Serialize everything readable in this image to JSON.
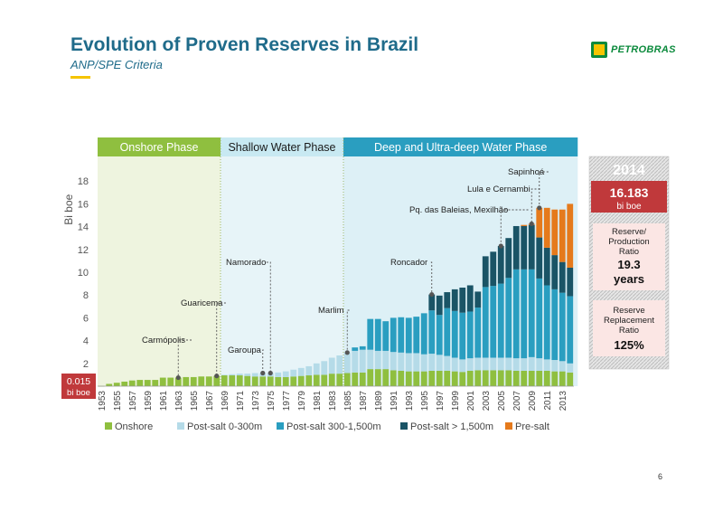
{
  "header": {
    "title": "Evolution of Proven Reserves in Brazil",
    "subtitle": "ANP/SPE Criteria",
    "logo_text": "PETROBRAS",
    "page_number": "6"
  },
  "phases": [
    {
      "label": "Onshore Phase",
      "start": "1953",
      "end": "1967",
      "color": "#8fbf3f"
    },
    {
      "label": "Shallow Water Phase",
      "start": "1969",
      "end": "1983",
      "color": "#c8e9f2"
    },
    {
      "label": "Deep and Ultra-deep Water Phase",
      "start": "1985",
      "end": "2013",
      "color": "#2a9ec0"
    }
  ],
  "side_panel": {
    "year": "2014",
    "total_value": "16.183",
    "total_unit": "bi boe",
    "rp_label_lines": [
      "Reserve/",
      "Production",
      "Ratio"
    ],
    "rp_value": "19.3",
    "rp_unit": "years",
    "rr_label_lines": [
      "Reserve",
      "Replacement",
      "Ratio"
    ],
    "rr_value": "125%"
  },
  "start_box": {
    "value": "0.015",
    "unit": "bi boe"
  },
  "annotations": [
    {
      "label": "Carmópolis",
      "year": "1963"
    },
    {
      "label": "Guaricema",
      "year": "1968"
    },
    {
      "label": "Garoupa",
      "year": "1974"
    },
    {
      "label": "Namorado",
      "year": "1975"
    },
    {
      "label": "Marlim",
      "year": "1985"
    },
    {
      "label": "Roncador",
      "year": "1996"
    },
    {
      "label": "Pq. das Baleias, Mexilhão",
      "year": "2005"
    },
    {
      "label": "Lula e Cernambi",
      "year": "2009"
    },
    {
      "label": "Sapinhoá",
      "year": "2010"
    }
  ],
  "colors": {
    "onshore": "#8fbf3f",
    "post_salt_shallow": "#b5dbe8",
    "post_salt_300_1500": "#2a9ec0",
    "post_salt_deep": "#1a5466",
    "pre_salt": "#e57a1c",
    "title": "#1f6b8a",
    "highlight_red": "#c0393b"
  },
  "chart_data": {
    "type": "bar",
    "stacked": true,
    "ylabel": "Bi boe",
    "ylim": [
      0,
      18
    ],
    "yticks": [
      2,
      4,
      6,
      8,
      10,
      12,
      14,
      16,
      18
    ],
    "categories": [
      "1953",
      "1954",
      "1955",
      "1956",
      "1957",
      "1958",
      "1959",
      "1960",
      "1961",
      "1962",
      "1963",
      "1964",
      "1965",
      "1966",
      "1967",
      "1968",
      "1969",
      "1970",
      "1971",
      "1972",
      "1973",
      "1974",
      "1975",
      "1976",
      "1977",
      "1978",
      "1979",
      "1980",
      "1981",
      "1982",
      "1983",
      "1984",
      "1985",
      "1986",
      "1987",
      "1988",
      "1989",
      "1990",
      "1991",
      "1992",
      "1993",
      "1994",
      "1995",
      "1996",
      "1997",
      "1998",
      "1999",
      "2000",
      "2001",
      "2002",
      "2003",
      "2004",
      "2005",
      "2006",
      "2007",
      "2008",
      "2009",
      "2010",
      "2011",
      "2012",
      "2013",
      "2014"
    ],
    "tick_labels": [
      "1953",
      "1955",
      "1957",
      "1959",
      "1961",
      "1963",
      "1965",
      "1967",
      "1969",
      "1971",
      "1973",
      "1975",
      "1977",
      "1979",
      "1981",
      "1983",
      "1985",
      "1987",
      "1989",
      "1991",
      "1993",
      "1995",
      "1997",
      "1999",
      "2001",
      "2003",
      "2005",
      "2007",
      "2009",
      "2011",
      "2013"
    ],
    "series": [
      {
        "name": "Onshore",
        "color": "#8fbf3f",
        "values": [
          0.015,
          0.2,
          0.3,
          0.4,
          0.5,
          0.55,
          0.55,
          0.55,
          0.75,
          0.75,
          0.75,
          0.8,
          0.8,
          0.85,
          0.85,
          0.9,
          0.95,
          0.95,
          0.95,
          0.9,
          0.85,
          0.85,
          0.85,
          0.8,
          0.8,
          0.85,
          0.9,
          0.95,
          1.0,
          1.0,
          1.1,
          1.1,
          1.15,
          1.2,
          1.2,
          1.5,
          1.5,
          1.5,
          1.4,
          1.35,
          1.3,
          1.3,
          1.3,
          1.35,
          1.35,
          1.35,
          1.3,
          1.25,
          1.35,
          1.4,
          1.4,
          1.4,
          1.4,
          1.4,
          1.35,
          1.35,
          1.35,
          1.35,
          1.35,
          1.3,
          1.3,
          1.2
        ]
      },
      {
        "name": "Post-salt 0-300m",
        "color": "#b5dbe8",
        "values": [
          0,
          0,
          0,
          0,
          0,
          0,
          0,
          0,
          0,
          0,
          0,
          0,
          0,
          0,
          0,
          0,
          0.05,
          0.1,
          0.15,
          0.2,
          0.3,
          0.3,
          0.3,
          0.4,
          0.5,
          0.6,
          0.7,
          0.8,
          1.0,
          1.2,
          1.4,
          1.6,
          1.8,
          1.9,
          2.0,
          1.7,
          1.6,
          1.6,
          1.6,
          1.6,
          1.6,
          1.6,
          1.5,
          1.5,
          1.4,
          1.3,
          1.2,
          1.1,
          1.1,
          1.1,
          1.1,
          1.1,
          1.1,
          1.1,
          1.1,
          1.1,
          1.2,
          1.1,
          1.0,
          1.0,
          0.9,
          0.8
        ]
      },
      {
        "name": "Post-salt 300-1,500m",
        "color": "#2a9ec0",
        "values": [
          0,
          0,
          0,
          0,
          0,
          0,
          0,
          0,
          0,
          0,
          0,
          0,
          0,
          0,
          0,
          0,
          0,
          0,
          0,
          0,
          0,
          0,
          0,
          0,
          0,
          0,
          0,
          0,
          0,
          0,
          0,
          0,
          0,
          0.3,
          0.3,
          2.7,
          2.8,
          2.6,
          3.0,
          3.1,
          3.1,
          3.2,
          3.6,
          3.8,
          3.5,
          4.2,
          4.1,
          4.1,
          4.1,
          4.4,
          6.2,
          6.3,
          6.5,
          7.0,
          7.8,
          7.8,
          7.7,
          7.0,
          6.5,
          6.2,
          6.0,
          5.9
        ]
      },
      {
        "name": "Post-salt > 1,500m",
        "color": "#1a5466",
        "values": [
          0,
          0,
          0,
          0,
          0,
          0,
          0,
          0,
          0,
          0,
          0,
          0,
          0,
          0,
          0,
          0,
          0,
          0,
          0,
          0,
          0,
          0,
          0,
          0,
          0,
          0,
          0,
          0,
          0,
          0,
          0,
          0,
          0,
          0,
          0,
          0,
          0,
          0,
          0,
          0,
          0,
          0,
          0,
          1.4,
          1.7,
          1.4,
          1.9,
          2.2,
          2.3,
          1.4,
          2.7,
          3.0,
          3.3,
          3.5,
          3.8,
          3.8,
          3.9,
          3.6,
          3.3,
          3.0,
          2.7,
          2.5
        ]
      },
      {
        "name": "Pre-salt",
        "color": "#e57a1c",
        "values": [
          0,
          0,
          0,
          0,
          0,
          0,
          0,
          0,
          0,
          0,
          0,
          0,
          0,
          0,
          0,
          0,
          0,
          0,
          0,
          0,
          0,
          0,
          0,
          0,
          0,
          0,
          0,
          0,
          0,
          0,
          0,
          0,
          0,
          0,
          0,
          0,
          0,
          0,
          0,
          0,
          0,
          0,
          0,
          0,
          0,
          0,
          0,
          0,
          0,
          0,
          0,
          0,
          0,
          0,
          0,
          0.1,
          0.1,
          2.6,
          3.5,
          4.0,
          4.6,
          5.6
        ]
      }
    ],
    "legend_position": "bottom"
  }
}
